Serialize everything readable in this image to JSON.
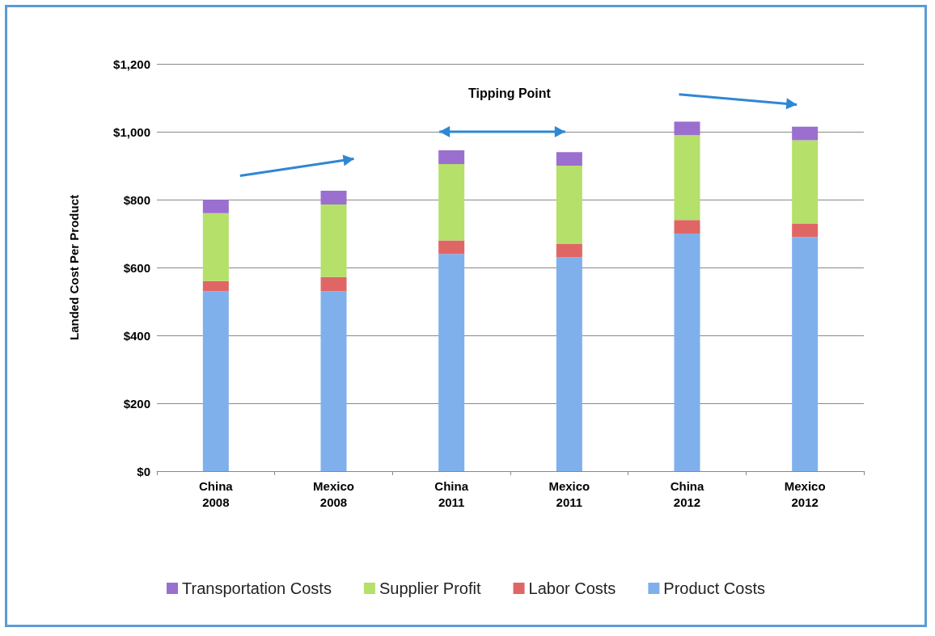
{
  "chart_data": {
    "type": "bar",
    "stacked": true,
    "ylabel": "Landed Cost Per Product",
    "categories": [
      "China 2008",
      "Mexico 2008",
      "China 2011",
      "Mexico 2011",
      "China 2012",
      "Mexico 2012"
    ],
    "series": [
      {
        "name": "Product Costs",
        "color": "#7fb0ec",
        "values": [
          530,
          530,
          640,
          630,
          700,
          690
        ]
      },
      {
        "name": "Labor Costs",
        "color": "#e06666",
        "values": [
          30,
          42,
          40,
          40,
          40,
          40
        ]
      },
      {
        "name": "Supplier Profit",
        "color": "#b5e06a",
        "values": [
          200,
          214,
          225,
          230,
          250,
          245
        ]
      },
      {
        "name": "Transportation Costs",
        "color": "#9b6fcf",
        "values": [
          40,
          40,
          40,
          40,
          40,
          40
        ]
      }
    ],
    "ylim": [
      0,
      1200
    ],
    "yticks": [
      {
        "value": 0,
        "label": "$0"
      },
      {
        "value": 200,
        "label": "$200"
      },
      {
        "value": 400,
        "label": "$400"
      },
      {
        "value": 600,
        "label": "$600"
      },
      {
        "value": 800,
        "label": "$800"
      },
      {
        "value": 1000,
        "label": "$1,000"
      },
      {
        "value": 1200,
        "label": "$1,200"
      }
    ],
    "grid": "y",
    "legend": "bottom",
    "annotations": [
      "Tipping Point"
    ]
  }
}
